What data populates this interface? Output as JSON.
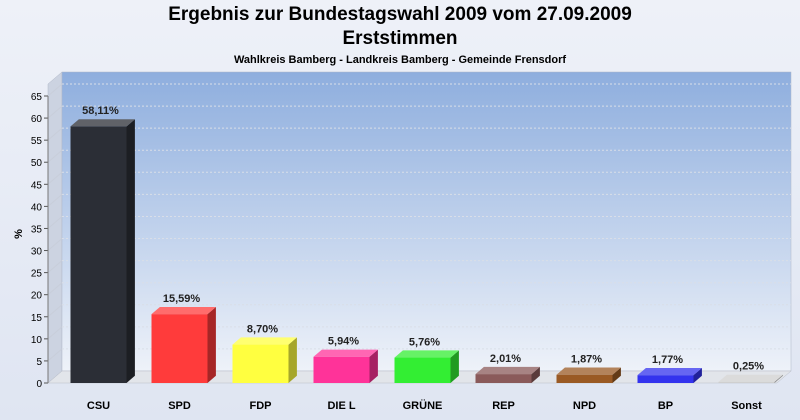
{
  "chart_data": {
    "type": "bar",
    "title": "Ergebnis zur Bundestagswahl 2009 vom 27.09.2009",
    "subtitle": "Erststimmen",
    "subtitle2": "Wahlkreis Bamberg - Landkreis Bamberg - Gemeinde Frensdorf",
    "xlabel": "",
    "ylabel": "%",
    "ylim": [
      0,
      65
    ],
    "yticks": [
      0,
      5,
      10,
      15,
      20,
      25,
      30,
      35,
      40,
      45,
      50,
      55,
      60,
      65
    ],
    "grid": true,
    "categories": [
      "CSU",
      "SPD",
      "FDP",
      "DIE L",
      "GRÜNE",
      "REP",
      "NPD",
      "BP",
      "Sonst"
    ],
    "values": [
      58.11,
      15.59,
      8.7,
      5.94,
      5.76,
      2.01,
      1.87,
      1.77,
      0.25
    ],
    "value_labels": [
      "58,11%",
      "15,59%",
      "8,70%",
      "5,94%",
      "5,76%",
      "2,01%",
      "1,87%",
      "1,77%",
      "0,25%"
    ],
    "colors": [
      "#2b2e36",
      "#ff3b3b",
      "#ffff40",
      "#ff3399",
      "#33ee33",
      "#8a5a5a",
      "#9a5a24",
      "#3333ee",
      "#cfcfcf"
    ]
  }
}
